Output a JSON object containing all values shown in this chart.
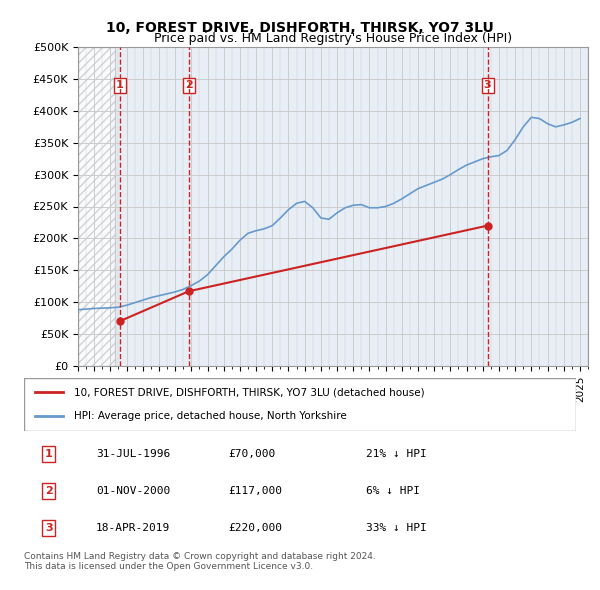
{
  "title": "10, FOREST DRIVE, DISHFORTH, THIRSK, YO7 3LU",
  "subtitle": "Price paid vs. HM Land Registry's House Price Index (HPI)",
  "ylim": [
    0,
    500000
  ],
  "yticks": [
    0,
    50000,
    100000,
    150000,
    200000,
    250000,
    300000,
    350000,
    400000,
    450000,
    500000
  ],
  "xlim_start": 1994.0,
  "xlim_end": 2025.5,
  "sale_dates": [
    1996.58,
    2000.84,
    2019.3
  ],
  "sale_prices": [
    70000,
    117000,
    220000
  ],
  "sale_labels": [
    "1",
    "2",
    "3"
  ],
  "hpi_color": "#6699cc",
  "sale_color": "#cc2222",
  "vline_color": "#cc2222",
  "grid_color": "#cccccc",
  "bg_color": "#e8eef5",
  "legend_entry1": "10, FOREST DRIVE, DISHFORTH, THIRSK, YO7 3LU (detached house)",
  "legend_entry2": "HPI: Average price, detached house, North Yorkshire",
  "table_rows": [
    [
      "1",
      "31-JUL-1996",
      "£70,000",
      "21% ↓ HPI"
    ],
    [
      "2",
      "01-NOV-2000",
      "£117,000",
      "6% ↓ HPI"
    ],
    [
      "3",
      "18-APR-2019",
      "£220,000",
      "33% ↓ HPI"
    ]
  ],
  "footer": "Contains HM Land Registry data © Crown copyright and database right 2024.\nThis data is licensed under the Open Government Licence v3.0.",
  "hpi_years": [
    1994.0,
    1994.5,
    1995.0,
    1995.5,
    1996.0,
    1996.5,
    1997.0,
    1997.5,
    1998.0,
    1998.5,
    1999.0,
    1999.5,
    2000.0,
    2000.5,
    2001.0,
    2001.5,
    2002.0,
    2002.5,
    2003.0,
    2003.5,
    2004.0,
    2004.5,
    2005.0,
    2005.5,
    2006.0,
    2006.5,
    2007.0,
    2007.5,
    2008.0,
    2008.5,
    2009.0,
    2009.5,
    2010.0,
    2010.5,
    2011.0,
    2011.5,
    2012.0,
    2012.5,
    2013.0,
    2013.5,
    2014.0,
    2014.5,
    2015.0,
    2015.5,
    2016.0,
    2016.5,
    2017.0,
    2017.5,
    2018.0,
    2018.5,
    2019.0,
    2019.5,
    2020.0,
    2020.5,
    2021.0,
    2021.5,
    2022.0,
    2022.5,
    2023.0,
    2023.5,
    2024.0,
    2024.5,
    2025.0
  ],
  "hpi_values": [
    88000,
    89000,
    90000,
    90500,
    91000,
    92000,
    95000,
    99000,
    103000,
    107000,
    110000,
    113000,
    116000,
    120000,
    126000,
    133000,
    143000,
    157000,
    171000,
    183000,
    197000,
    208000,
    212000,
    215000,
    220000,
    232000,
    245000,
    255000,
    258000,
    248000,
    232000,
    230000,
    240000,
    248000,
    252000,
    253000,
    248000,
    248000,
    250000,
    255000,
    262000,
    270000,
    278000,
    283000,
    288000,
    293000,
    300000,
    308000,
    315000,
    320000,
    325000,
    328000,
    330000,
    338000,
    355000,
    375000,
    390000,
    388000,
    380000,
    375000,
    378000,
    382000,
    388000
  ]
}
